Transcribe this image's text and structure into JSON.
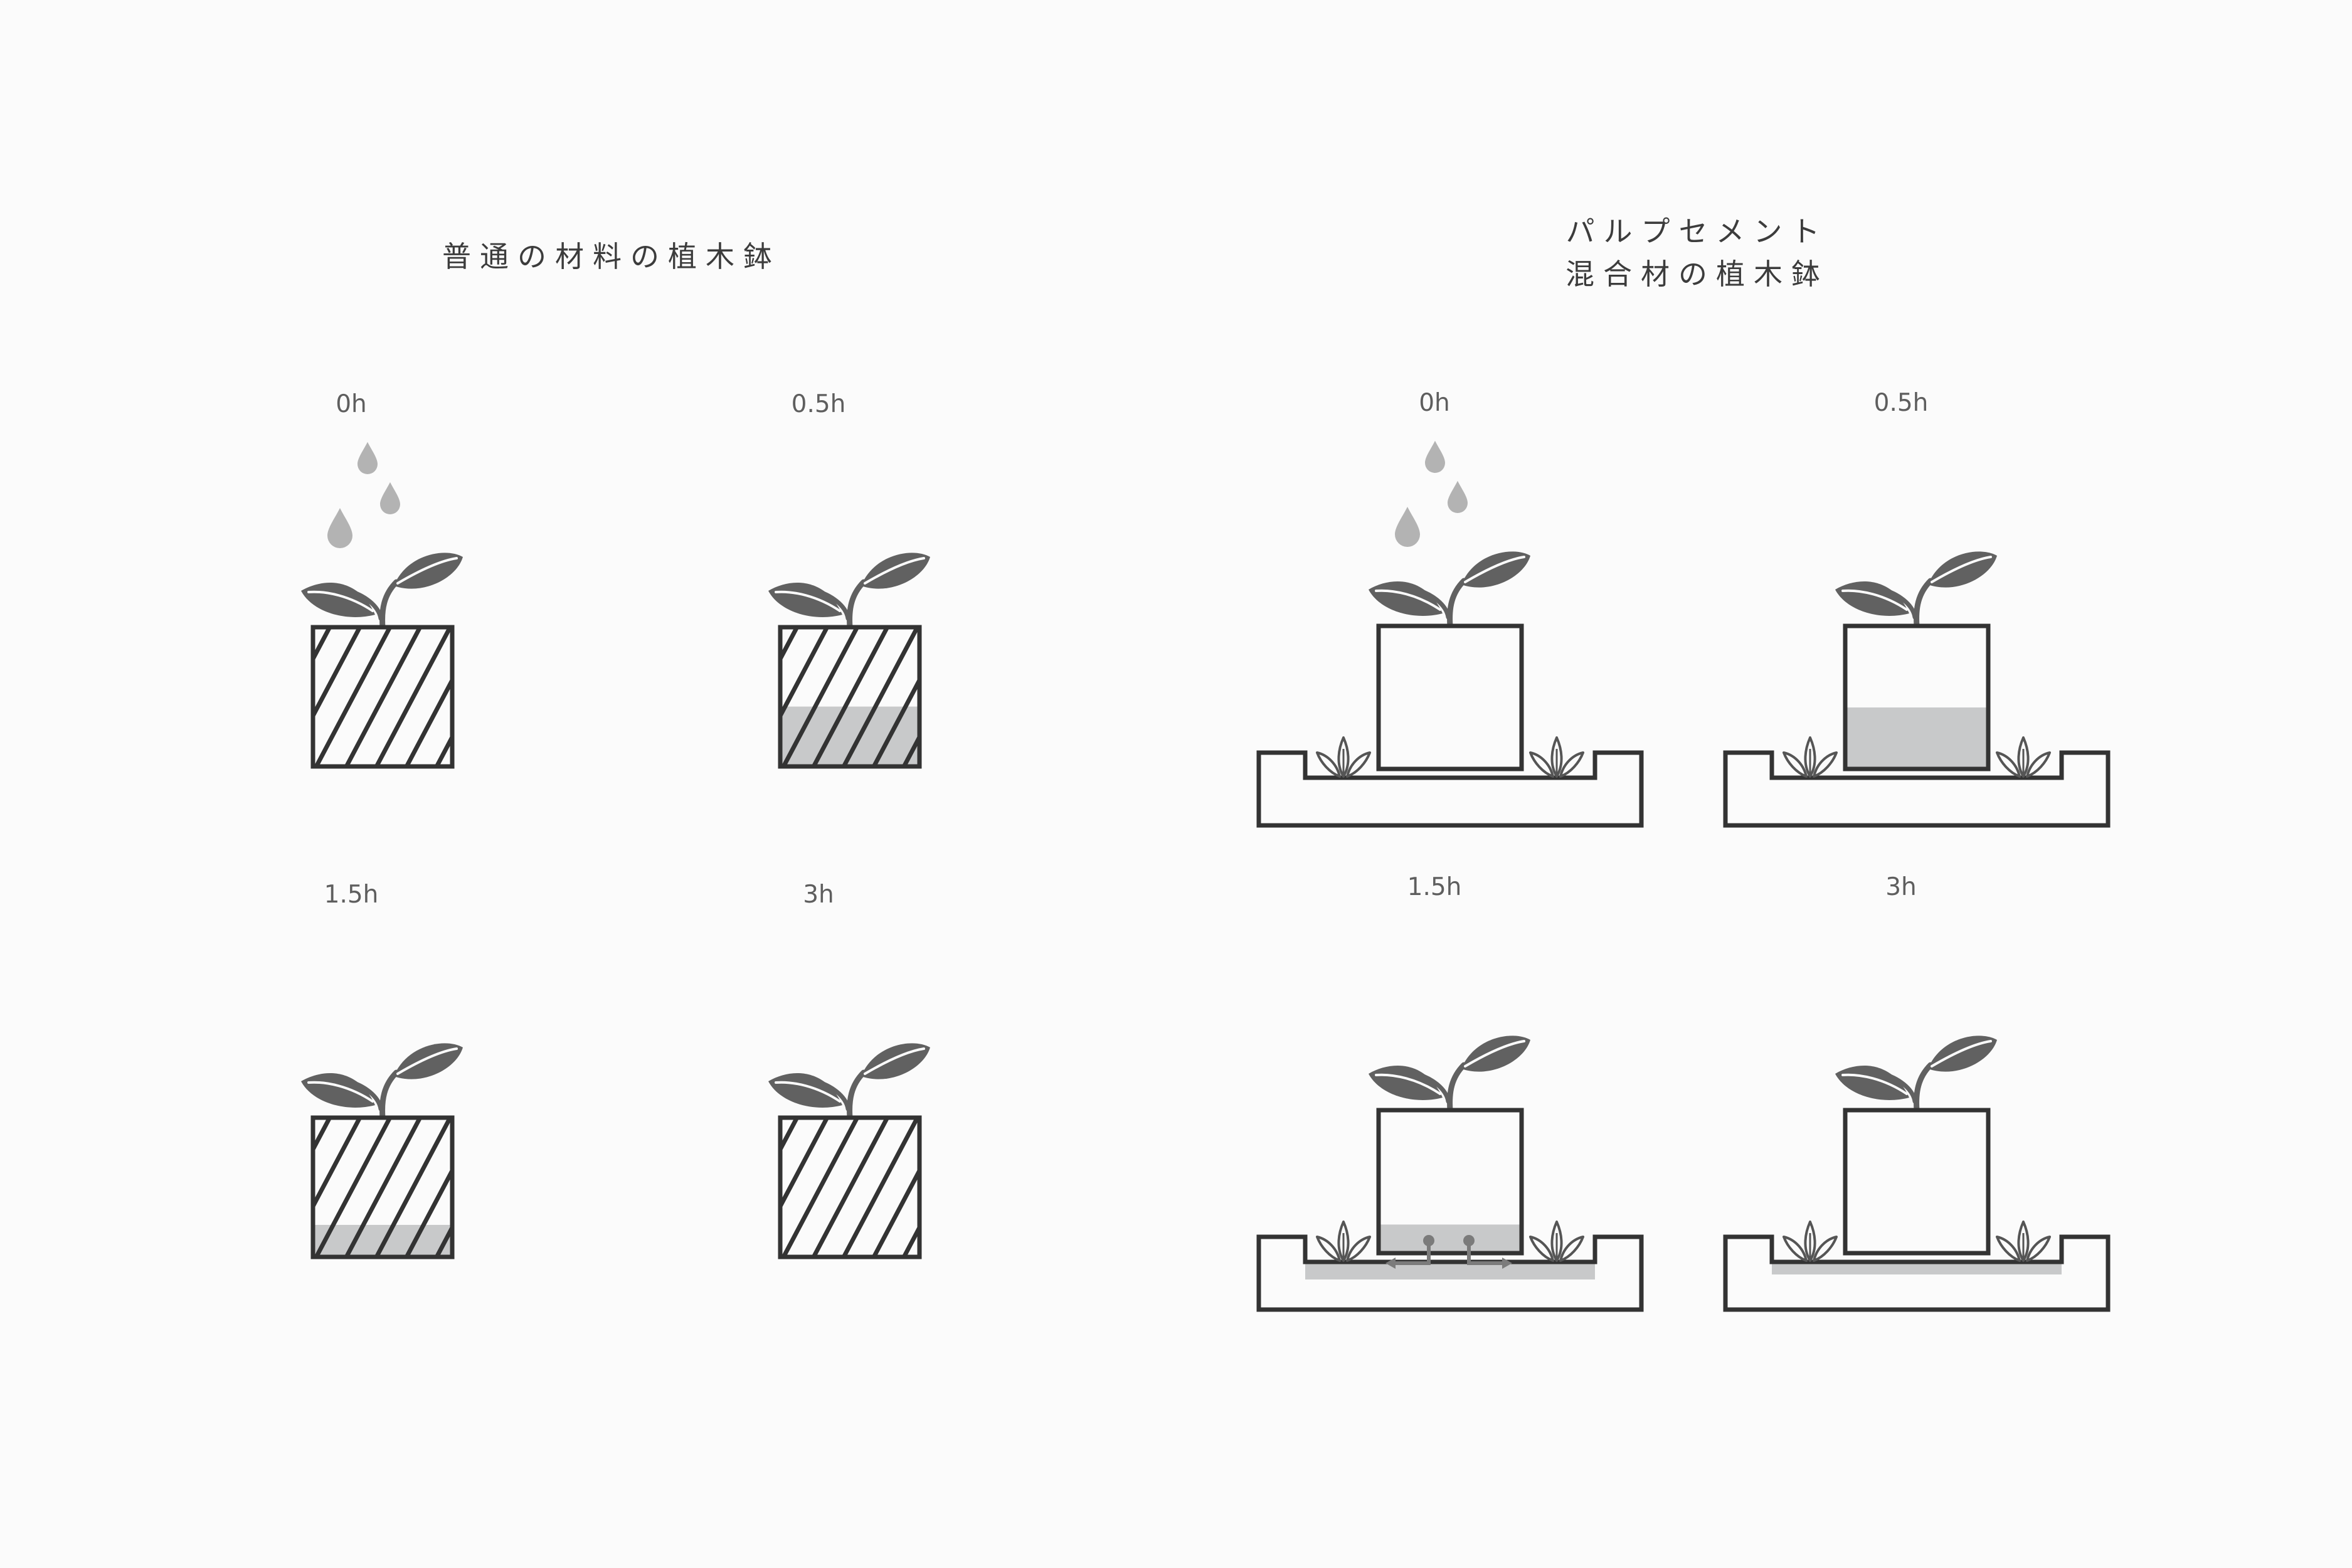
{
  "headings": {
    "standard_pot": "普通の材料の植木鉢",
    "pulp_cement_line1": "パルプセメント",
    "pulp_cement_line2": "混合材の植木鉢"
  },
  "standard_pot_panels": [
    {
      "time": "0h",
      "water_in_pot": 0.0,
      "watering": true
    },
    {
      "time": "0.5h",
      "water_in_pot": 0.43,
      "watering": false
    },
    {
      "time": "1.5h",
      "water_in_pot": 0.23,
      "watering": false
    },
    {
      "time": "3h",
      "water_in_pot": 0.0,
      "watering": false
    }
  ],
  "pulp_cement_panels": [
    {
      "time": "0h",
      "water_in_pot": 0.0,
      "water_in_tray": false,
      "seeping": false,
      "watering": true
    },
    {
      "time": "0.5h",
      "water_in_pot": 0.43,
      "water_in_tray": false,
      "seeping": false,
      "watering": false
    },
    {
      "time": "1.5h",
      "water_in_pot": 0.2,
      "water_in_tray": true,
      "seeping": true,
      "watering": false
    },
    {
      "time": "3h",
      "water_in_pot": 0.0,
      "water_in_tray": true,
      "seeping": false,
      "watering": false
    }
  ],
  "colors": {
    "background": "#fbfbfb",
    "outline": "#333333",
    "leaf": "#616161",
    "water": "#c8c9ca",
    "drop": "#b3b3b3",
    "arrow": "#7b7b7b",
    "text": "#4a4a4a"
  },
  "icons": {
    "plant": "seedling-icon",
    "drop": "water-drop-icon",
    "sprout": "sprout-icon",
    "arrow": "flow-arrow-icon"
  }
}
